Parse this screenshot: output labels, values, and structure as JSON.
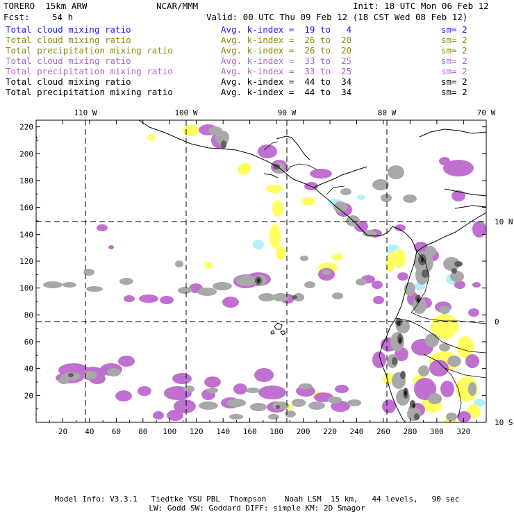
{
  "header": {
    "model": "TORERO  15km ARW",
    "center": "NCAR/MMM",
    "init": "Init: 18 UTC Mon 06 Feb 12",
    "fcst_label": "Fcst:",
    "fcst_value": "54 h",
    "valid": "Valid: 00 UTC Thu 09 Feb 12 (18 CST Wed 08 Feb 12)"
  },
  "legend": [
    {
      "field": "Total cloud mixing ratio",
      "kindex": "Avg. k-index =  19 to   4",
      "sm": "sm= 2",
      "color": "#1a1aff"
    },
    {
      "field": "Total cloud mixing ratio",
      "kindex": "Avg. k-index =  26 to  20",
      "sm": "sm= 2",
      "color": "#8c8c00"
    },
    {
      "field": "Total precipitation mixing ratio",
      "kindex": "Avg. k-index =  26 to  20",
      "sm": "sm= 2",
      "color": "#8c8c00"
    },
    {
      "field": "Total cloud mixing ratio",
      "kindex": "Avg. k-index =  33 to  25",
      "sm": "sm= 2",
      "color": "#b066c8"
    },
    {
      "field": "Total precipitation mixing ratio",
      "kindex": "Avg. k-index =  33 to  25",
      "sm": "sm= 2",
      "color": "#b066c8"
    },
    {
      "field": "Total cloud mixing ratio",
      "kindex": "Avg. k-index =  44 to  34",
      "sm": "sm= 2",
      "color": "#000000"
    },
    {
      "field": "Total precipitation mixing ratio",
      "kindex": "Avg. k-index =  44 to  34",
      "sm": "sm= 2",
      "color": "#000000"
    }
  ],
  "map": {
    "lon_labels": [
      "110 W",
      "100 W",
      "90 W",
      "80 W",
      "70 W"
    ],
    "lat_labels": [
      "10 N",
      "0",
      "10 S"
    ],
    "x_ticks": [
      "20",
      "40",
      "60",
      "80",
      "100",
      "120",
      "140",
      "160",
      "180",
      "200",
      "220",
      "240",
      "260",
      "280",
      "300",
      "320"
    ],
    "y_ticks": [
      "220",
      "200",
      "180",
      "160",
      "140",
      "120",
      "100",
      "80",
      "60",
      "40",
      "20"
    ],
    "colors": {
      "light_blue": "#b4f0ff",
      "yellow": "#ffff60",
      "purple": "#c070d0",
      "gray": "#a8a8a8",
      "dark_gray": "#606060",
      "black": "#202020"
    }
  },
  "footer": {
    "line1": "Model Info: V3.3.1   Tiedtke YSU PBL  Thompson    Noah LSM  15 km,   44 levels,   90 sec",
    "line2": "LW: Godd SW: Goddard DIFF: simple KM: 2D Smagor"
  }
}
